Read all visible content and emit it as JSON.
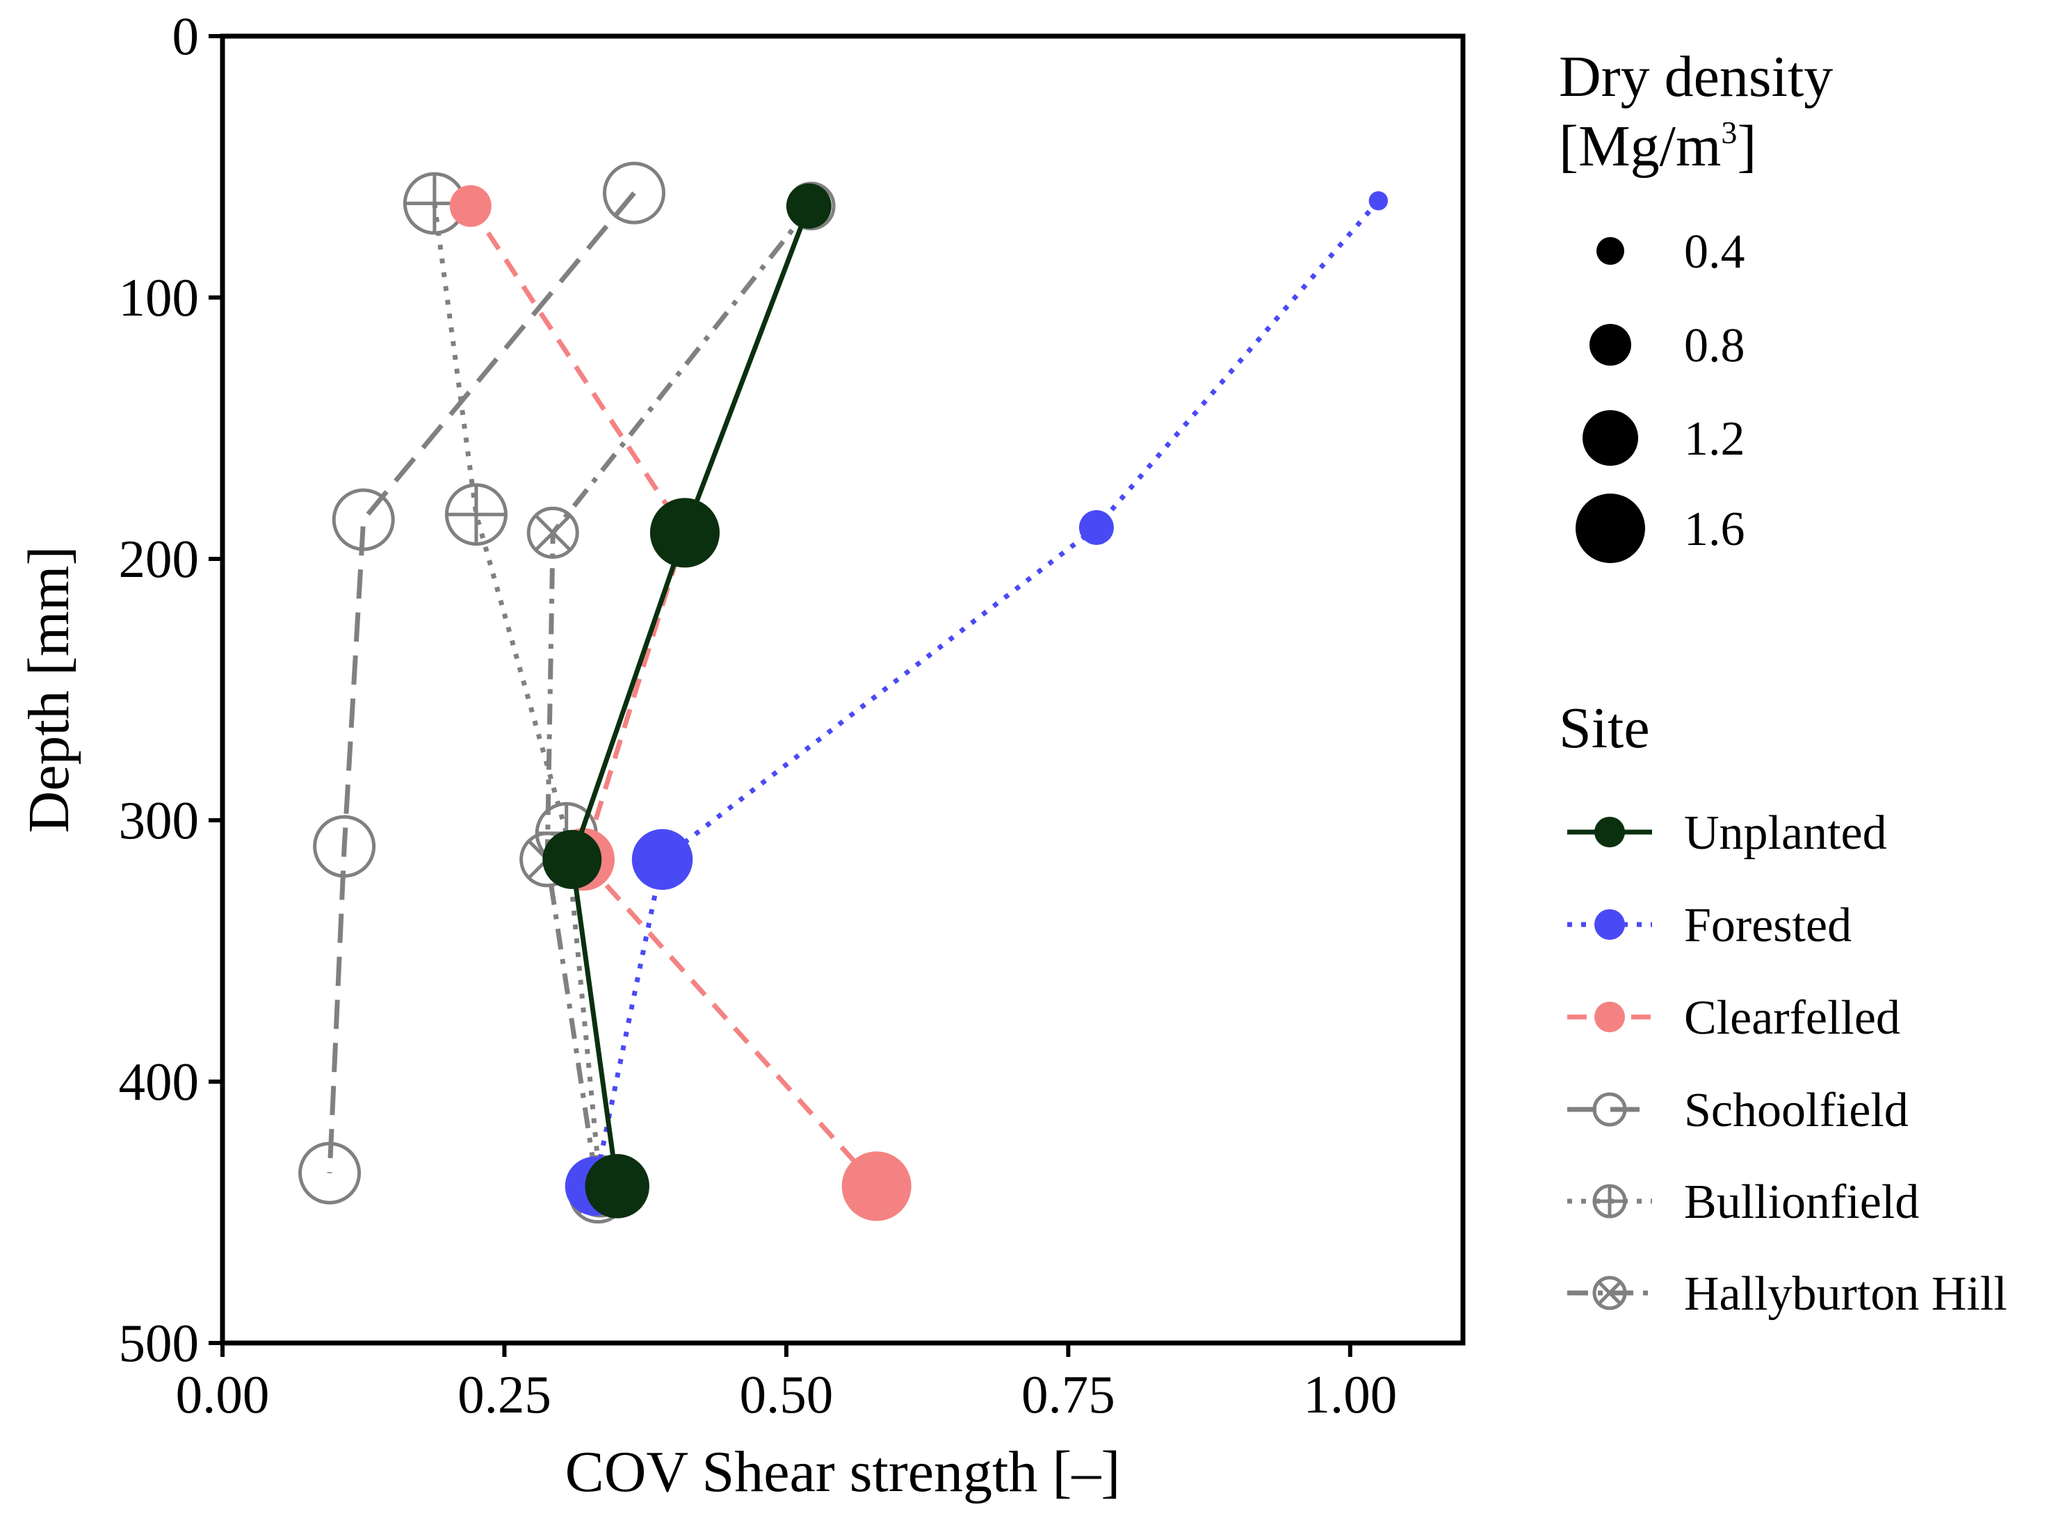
{
  "chart_data": {
    "type": "line",
    "xlabel": "COV Shear strength [–]",
    "ylabel": "Depth [mm]",
    "xlim": [
      0,
      1.1
    ],
    "ylim": [
      0,
      500
    ],
    "y_reversed": true,
    "x_ticks": [
      "0.00",
      "0.25",
      "0.50",
      "0.75",
      "1.00"
    ],
    "x_tick_values": [
      0,
      0.25,
      0.5,
      0.75,
      1.0
    ],
    "y_ticks": [
      "0",
      "100",
      "200",
      "300",
      "400",
      "500"
    ],
    "y_tick_values": [
      0,
      100,
      200,
      300,
      400,
      500
    ],
    "grid": false,
    "legend_position": "right",
    "size_legend": {
      "title_line1": "Dry density",
      "title_line2_main": "[Mg/m",
      "title_line2_sup": "3",
      "title_line2_end": "]",
      "entries": [
        {
          "label": "0.4",
          "value": 0.4
        },
        {
          "label": "0.8",
          "value": 0.8
        },
        {
          "label": "1.2",
          "value": 1.2
        },
        {
          "label": "1.6",
          "value": 1.6
        }
      ]
    },
    "site_legend": {
      "title": "Site"
    },
    "series": [
      {
        "name": "Unplanted",
        "color": "#0a3010",
        "line_style": "solid",
        "marker": "filled-circle",
        "points": [
          {
            "x": 0.52,
            "y": 65,
            "density": 0.9
          },
          {
            "x": 0.41,
            "y": 190,
            "density": 1.6
          },
          {
            "x": 0.31,
            "y": 315,
            "density": 1.3
          },
          {
            "x": 0.35,
            "y": 440,
            "density": 1.45
          }
        ]
      },
      {
        "name": "Forested",
        "color": "#4a4af5",
        "line_style": "dotted",
        "marker": "filled-circle",
        "points": [
          {
            "x": 1.025,
            "y": 63,
            "density": 0.15
          },
          {
            "x": 0.775,
            "y": 188,
            "density": 0.6
          },
          {
            "x": 0.39,
            "y": 315,
            "density": 1.35
          },
          {
            "x": 0.33,
            "y": 440,
            "density": 1.3
          }
        ]
      },
      {
        "name": "Clearfelled",
        "color": "#f58282",
        "line_style": "dashed",
        "marker": "filled-circle",
        "points": [
          {
            "x": 0.22,
            "y": 65,
            "density": 0.8
          },
          {
            "x": 0.41,
            "y": 190,
            "density": 1.6
          },
          {
            "x": 0.32,
            "y": 315,
            "density": 1.4
          },
          {
            "x": 0.58,
            "y": 440,
            "density": 1.6
          }
        ]
      },
      {
        "name": "Schoolfield",
        "color": "#808080",
        "line_style": "longdash",
        "marker": "open-circle",
        "points": [
          {
            "x": 0.365,
            "y": 60,
            "density": 1.3
          },
          {
            "x": 0.125,
            "y": 185,
            "density": 1.3
          },
          {
            "x": 0.108,
            "y": 310,
            "density": 1.3
          },
          {
            "x": 0.095,
            "y": 435,
            "density": 1.3
          }
        ]
      },
      {
        "name": "Bullionfield",
        "color": "#808080",
        "line_style": "dotted",
        "marker": "circle-plus",
        "points": [
          {
            "x": 0.188,
            "y": 64,
            "density": 1.3
          },
          {
            "x": 0.225,
            "y": 183,
            "density": 1.3
          },
          {
            "x": 0.305,
            "y": 305,
            "density": 1.3
          },
          {
            "x": 0.335,
            "y": 440,
            "density": 1.3
          }
        ]
      },
      {
        "name": "Hallyburton Hill",
        "color": "#808080",
        "line_style": "dashdot",
        "marker": "circle-x",
        "points": [
          {
            "x": 0.522,
            "y": 65,
            "density": 0.9
          },
          {
            "x": 0.293,
            "y": 190,
            "density": 1.0
          },
          {
            "x": 0.288,
            "y": 315,
            "density": 1.1
          },
          {
            "x": 0.333,
            "y": 443,
            "density": 1.2
          }
        ]
      }
    ]
  }
}
